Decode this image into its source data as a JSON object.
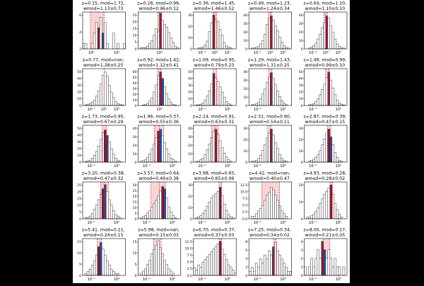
{
  "chart_data": [
    {
      "type": "histogram",
      "title_line1": "z=0.15, mod=1.72,",
      "title_line2": "wmod=1.13±0.73",
      "xscale": "log",
      "xticks": [
        "10⁰",
        "10¹"
      ],
      "yticks": [
        "2",
        "4",
        "6"
      ],
      "ymax": 7,
      "values": [
        1,
        1,
        0,
        0,
        1,
        3,
        5,
        4,
        6,
        3,
        5,
        1,
        0,
        0,
        3,
        0,
        1,
        0,
        0,
        1
      ],
      "highlight_bar": 7,
      "blue_bar": 9,
      "red_line_fracs": [
        0.18,
        0.5,
        0.5
      ]
    },
    {
      "type": "histogram",
      "title_line1": "z=0.26, mod=0.96,",
      "title_line2": "wmod=0.96±0.12",
      "xscale": "log",
      "xticks": [
        "10⁰"
      ],
      "yticks": [
        "0",
        "5",
        "10",
        "15",
        "20",
        "25"
      ],
      "ymax": 27,
      "values": [
        0,
        1,
        1,
        1,
        2,
        4,
        6,
        10,
        15,
        13,
        26,
        21,
        18,
        16,
        12,
        8,
        5,
        2,
        1,
        0
      ],
      "highlight_bar": 10,
      "blue_bar": -1,
      "red_line_fracs": [
        0.46,
        0.5,
        0.54
      ]
    },
    {
      "type": "histogram",
      "title_line1": "z=0.36, mod=1.45,",
      "title_line2": "wmod=1.46±0.52",
      "xscale": "log",
      "xticks": [
        "10⁻¹",
        "10⁰",
        "10¹"
      ],
      "yticks": [
        "0",
        "10",
        "20",
        "30"
      ],
      "ymax": 38,
      "values": [
        0,
        0,
        1,
        1,
        2,
        4,
        8,
        18,
        27,
        35,
        30,
        28,
        20,
        14,
        6,
        3,
        2,
        1,
        0,
        0
      ],
      "highlight_bar": 9,
      "blue_bar": -1,
      "red_line_fracs": [
        0.46,
        0.5,
        0.54
      ]
    },
    {
      "type": "histogram",
      "title_line1": "z=0.49, mod=1.23,",
      "title_line2": "wmod=1.24±0.34",
      "xscale": "log",
      "xticks": [
        "10⁻¹",
        "10⁰",
        "10¹"
      ],
      "yticks": [
        "0",
        "10",
        "20",
        "30",
        "40"
      ],
      "ymax": 45,
      "values": [
        0,
        1,
        1,
        2,
        3,
        6,
        10,
        18,
        30,
        38,
        40,
        35,
        28,
        22,
        14,
        8,
        4,
        2,
        1,
        0
      ],
      "highlight_bar": 10,
      "blue_bar": -1,
      "red_line_fracs": [
        0.46,
        0.5,
        0.54
      ]
    },
    {
      "type": "histogram",
      "title_line1": "z=0.64, mod=1.10,",
      "title_line2": "wmod=1.10±0.10",
      "xscale": "log",
      "xticks": [
        "10⁻¹",
        "10⁰",
        "10¹"
      ],
      "yticks": [
        "0",
        "10",
        "20",
        "30",
        "40"
      ],
      "ymax": 45,
      "values": [
        0,
        0,
        1,
        2,
        4,
        7,
        12,
        18,
        26,
        32,
        40,
        38,
        28,
        20,
        12,
        6,
        3,
        1,
        1,
        0
      ],
      "highlight_bar": 10,
      "blue_bar": -1,
      "red_line_fracs": [
        0.46,
        0.5,
        0.54
      ]
    },
    {
      "type": "histogram",
      "title_line1": "z=0.77, mod=nan,",
      "title_line2": "wmod=1.28±0.25",
      "xscale": "log",
      "xticks": [
        "10⁻¹",
        "10⁰",
        "10¹"
      ],
      "yticks": [
        "0",
        "10",
        "20",
        "30",
        "40",
        "50"
      ],
      "ymax": 55,
      "values": [
        0,
        1,
        2,
        3,
        5,
        8,
        14,
        22,
        32,
        45,
        50,
        44,
        30,
        20,
        12,
        6,
        3,
        2,
        1,
        0
      ],
      "highlight_bar": -1,
      "blue_bar": -1,
      "red_line_fracs": [
        0.5
      ]
    },
    {
      "type": "histogram",
      "title_line1": "z=0.92, mod=1.42,",
      "title_line2": "wmod=1.12±0.41",
      "xscale": "log",
      "xticks": [
        "10⁰"
      ],
      "yticks": [
        "0",
        "10",
        "20",
        "30",
        "40",
        "50",
        "60"
      ],
      "ymax": 68,
      "values": [
        0,
        0,
        1,
        2,
        4,
        8,
        14,
        25,
        38,
        55,
        62,
        50,
        35,
        22,
        12,
        6,
        2,
        1,
        0,
        0
      ],
      "highlight_bar": 10,
      "blue_bar": 11,
      "red_line_fracs": [
        0.46,
        0.54
      ]
    },
    {
      "type": "histogram",
      "title_line1": "z=1.09, mod=0.95,",
      "title_line2": "wmod=0.79±0.23",
      "xscale": "log",
      "xticks": [
        "10⁻¹",
        "10⁰"
      ],
      "yticks": [
        "0",
        "10",
        "20",
        "30",
        "40",
        "50"
      ],
      "ymax": 55,
      "values": [
        0,
        1,
        1,
        2,
        4,
        8,
        14,
        22,
        32,
        48,
        42,
        36,
        28,
        20,
        12,
        6,
        3,
        1,
        0,
        0
      ],
      "highlight_bar": 9,
      "blue_bar": -1,
      "red_line_fracs": [
        0.46,
        0.54
      ]
    },
    {
      "type": "histogram",
      "title_line1": "z=1.29, mod=1.43,",
      "title_line2": "wmod=1.31±0.25",
      "xscale": "log",
      "xticks": [
        "10⁻¹",
        "10⁰"
      ],
      "yticks": [
        "0",
        "10",
        "20",
        "30",
        "40"
      ],
      "ymax": 45,
      "values": [
        0,
        1,
        1,
        2,
        4,
        8,
        14,
        20,
        28,
        35,
        40,
        33,
        26,
        18,
        11,
        6,
        3,
        1,
        0,
        0
      ],
      "highlight_bar": 10,
      "blue_bar": -1,
      "red_line_fracs": [
        0.46,
        0.54
      ]
    },
    {
      "type": "histogram",
      "title_line1": "z=1.49, mod=0.99,",
      "title_line2": "wmod=0.99±0.10",
      "xscale": "log",
      "xticks": [
        "10⁻¹",
        "10⁰"
      ],
      "yticks": [
        "0",
        "10",
        "20",
        "30",
        "40",
        "50"
      ],
      "ymax": 55,
      "values": [
        0,
        0,
        1,
        2,
        3,
        6,
        10,
        16,
        24,
        32,
        42,
        50,
        38,
        26,
        16,
        8,
        4,
        2,
        1,
        0
      ],
      "highlight_bar": 11,
      "blue_bar": -1,
      "red_line_fracs": [
        0.5,
        0.58
      ]
    },
    {
      "type": "histogram",
      "title_line1": "z=1.73, mod=0.95,",
      "title_line2": "wmod=0.67±0.29",
      "xscale": "log",
      "xticks": [
        "10⁻¹",
        "10⁰"
      ],
      "yticks": [
        "0",
        "10",
        "20",
        "30",
        "40",
        "50"
      ],
      "ymax": 55,
      "values": [
        0,
        1,
        2,
        3,
        6,
        10,
        16,
        24,
        34,
        44,
        48,
        40,
        30,
        20,
        12,
        6,
        3,
        1,
        0,
        0
      ],
      "highlight_bar": 10,
      "blue_bar": 11,
      "red_line_fracs": [
        0.46,
        0.56
      ]
    },
    {
      "type": "histogram",
      "title_line1": "z=1.96, mod=0.37,",
      "title_line2": "wmod=0.55±0.36",
      "xscale": "log",
      "xticks": [
        "10⁻¹",
        "10⁰"
      ],
      "yticks": [
        "0",
        "10",
        "20",
        "30",
        "40"
      ],
      "ymax": 45,
      "values": [
        0,
        1,
        2,
        3,
        6,
        10,
        16,
        22,
        30,
        38,
        40,
        32,
        24,
        16,
        10,
        5,
        3,
        1,
        0,
        0
      ],
      "highlight_bar": 9,
      "blue_bar": 10,
      "red_line_fracs": [
        0.38,
        0.5,
        0.6
      ]
    },
    {
      "type": "histogram",
      "title_line1": "z=2.24, mod=0.91,",
      "title_line2": "wmod=0.63±0.31",
      "xscale": "log",
      "xticks": [
        "10⁻¹",
        "10⁰"
      ],
      "yticks": [
        "0",
        "10",
        "20",
        "30",
        "40"
      ],
      "ymax": 45,
      "values": [
        0,
        1,
        1,
        3,
        5,
        9,
        15,
        22,
        30,
        38,
        40,
        34,
        26,
        18,
        11,
        6,
        3,
        1,
        0,
        0
      ],
      "highlight_bar": 10,
      "blue_bar": -1,
      "red_line_fracs": [
        0.42,
        0.5,
        0.58
      ]
    },
    {
      "type": "histogram",
      "title_line1": "z=2.51, mod=0.60,",
      "title_line2": "wmod=0.54±0.11",
      "xscale": "log",
      "xticks": [
        "10⁻¹",
        "10⁰"
      ],
      "yticks": [
        "0",
        "10",
        "20",
        "30"
      ],
      "ymax": 38,
      "values": [
        0,
        1,
        1,
        2,
        4,
        7,
        12,
        18,
        25,
        30,
        34,
        28,
        20,
        14,
        8,
        4,
        2,
        1,
        0,
        0
      ],
      "highlight_bar": 10,
      "blue_bar": -1,
      "red_line_fracs": [
        0.44,
        0.52
      ]
    },
    {
      "type": "histogram",
      "title_line1": "z=2.87, mod=0.39,",
      "title_line2": "wmod=0.47±0.15",
      "xscale": "log",
      "xticks": [
        "10⁻¹",
        "10⁰"
      ],
      "yticks": [
        "0",
        "10",
        "20",
        "30"
      ],
      "ymax": 38,
      "values": [
        0,
        0,
        1,
        2,
        3,
        5,
        8,
        12,
        18,
        24,
        30,
        34,
        26,
        18,
        10,
        5,
        2,
        1,
        0,
        0
      ],
      "highlight_bar": 11,
      "blue_bar": 12,
      "red_line_fracs": [
        0.54,
        0.62
      ]
    },
    {
      "type": "histogram",
      "title_line1": "z=3.20, mod=0.38,",
      "title_line2": "wmod=0.47±0.32",
      "xscale": "log",
      "xticks": [
        "10⁻¹",
        "10⁰"
      ],
      "yticks": [
        "0",
        "5",
        "10",
        "15",
        "20",
        "25"
      ],
      "ymax": 27,
      "values": [
        0,
        1,
        1,
        2,
        4,
        7,
        10,
        14,
        18,
        22,
        25,
        20,
        14,
        10,
        6,
        3,
        2,
        1,
        0,
        0
      ],
      "highlight_bar": 9,
      "blue_bar": 10,
      "red_line_fracs": [
        0.42,
        0.5,
        0.6
      ]
    },
    {
      "type": "histogram",
      "title_line1": "z=3.57, mod=0.64,",
      "title_line2": "wmod=0.49±0.38",
      "xscale": "log",
      "xticks": [
        "10⁻¹",
        "10⁰"
      ],
      "yticks": [
        "0",
        "5",
        "10",
        "15",
        "20",
        "25",
        "30"
      ],
      "ymax": 32,
      "values": [
        0,
        1,
        2,
        3,
        5,
        7,
        10,
        13,
        16,
        20,
        24,
        28,
        26,
        18,
        10,
        6,
        3,
        1,
        0,
        0
      ],
      "highlight_bar": 11,
      "blue_bar": 12,
      "red_line_fracs": [
        0.3,
        0.5,
        0.64
      ]
    },
    {
      "type": "histogram",
      "title_line1": "z=3.98, mod=0.65,",
      "title_line2": "wmod=0.65±0.06",
      "xscale": "log",
      "xticks": [
        "10⁻¹",
        "10⁰"
      ],
      "yticks": [
        "0",
        "10",
        "20",
        "30"
      ],
      "ymax": 35,
      "values": [
        0,
        1,
        2,
        3,
        5,
        8,
        12,
        16,
        20,
        22,
        24,
        26,
        30,
        22,
        14,
        8,
        4,
        2,
        1,
        0
      ],
      "highlight_bar": 12,
      "blue_bar": -1,
      "red_line_fracs": [
        0.6,
        0.66
      ]
    },
    {
      "type": "histogram",
      "title_line1": "z=4.42, mod=nan,",
      "title_line2": "wmod=0.40±0.47",
      "xscale": "log",
      "xticks": [
        "10⁻¹",
        "10⁰"
      ],
      "yticks": [
        "0.0",
        "2.5",
        "5.0",
        "7.5",
        "10.0",
        "12.5"
      ],
      "ymax": 14,
      "values": [
        0,
        1,
        1,
        2,
        3,
        4,
        5,
        7,
        9,
        10,
        12,
        11,
        9,
        7,
        5,
        3,
        2,
        1,
        0,
        0
      ],
      "highlight_bar": -1,
      "blue_bar": -1,
      "red_line_fracs": [
        0.3,
        0.72
      ]
    },
    {
      "type": "histogram",
      "title_line1": "z=4.93, mod=0.28,",
      "title_line2": "wmod=0.28±0.02",
      "xscale": "log",
      "xticks": [
        "10⁻¹",
        "10⁰"
      ],
      "yticks": [
        "0",
        "10",
        "20"
      ],
      "ymax": 24,
      "values": [
        0,
        1,
        1,
        2,
        3,
        5,
        7,
        10,
        13,
        16,
        18,
        20,
        22,
        16,
        10,
        6,
        3,
        1,
        0,
        0
      ],
      "highlight_bar": 12,
      "blue_bar": -1,
      "red_line_fracs": [
        0.6,
        0.66
      ]
    },
    {
      "type": "histogram",
      "title_line1": "z=5.41, mod=0.21,",
      "title_line2": "wmod=0.24±0.15",
      "xscale": "log",
      "xticks": [
        "10⁻¹",
        "10⁰"
      ],
      "yticks": [
        "0",
        "5",
        "10",
        "15"
      ],
      "ymax": 18,
      "values": [
        0,
        1,
        2,
        3,
        5,
        7,
        10,
        14,
        16,
        13,
        10,
        7,
        5,
        3,
        2,
        1,
        1,
        0,
        0,
        0
      ],
      "highlight_bar": 7,
      "blue_bar": 8,
      "red_line_fracs": [
        0.34,
        0.44
      ]
    },
    {
      "type": "histogram",
      "title_line1": "z=5.98, mod=nan,",
      "title_line2": "wmod=0.15±0.03",
      "xscale": "log",
      "xticks": [
        "10⁻¹",
        "10⁰"
      ],
      "yticks": [
        "0",
        "5",
        "10",
        "15"
      ],
      "ymax": 17,
      "values": [
        0,
        1,
        2,
        3,
        5,
        7,
        10,
        12,
        14,
        16,
        13,
        10,
        7,
        5,
        3,
        2,
        1,
        0,
        0,
        0
      ],
      "highlight_bar": -1,
      "blue_bar": -1,
      "red_line_fracs": [
        0.36,
        0.54
      ]
    },
    {
      "type": "histogram",
      "title_line1": "z=6.70, mod=0.37,",
      "title_line2": "wmod=0.37±0.03",
      "xscale": "log",
      "xticks": [
        "10⁻¹",
        "10⁰"
      ],
      "yticks": [
        "0.0",
        "2.5",
        "5.0",
        "7.5",
        "10.0",
        "12.5"
      ],
      "ymax": 14,
      "values": [
        3,
        2,
        4,
        3,
        5,
        6,
        7,
        8,
        9,
        10,
        11,
        12,
        13,
        10,
        8,
        6,
        4,
        3,
        2,
        1
      ],
      "highlight_bar": 12,
      "blue_bar": -1,
      "red_line_fracs": [
        0.6,
        0.66
      ]
    },
    {
      "type": "histogram",
      "title_line1": "z=7.25, mod=0.34,",
      "title_line2": "wmod=0.34±0.02",
      "xscale": "log",
      "xticks": [
        "10⁻¹",
        "10⁰"
      ],
      "yticks": [
        "0",
        "2",
        "4",
        "6",
        "8"
      ],
      "ymax": 9,
      "values": [
        1,
        2,
        1,
        3,
        2,
        4,
        3,
        5,
        4,
        6,
        5,
        7,
        8,
        6,
        5,
        4,
        3,
        2,
        1,
        1
      ],
      "highlight_bar": 11,
      "blue_bar": -1,
      "red_line_fracs": [
        0.58,
        0.64
      ]
    },
    {
      "type": "histogram",
      "title_line1": "z=8.00, mod=0.17,",
      "title_line2": "wmod=0.21±0.05",
      "xscale": "log",
      "xticks": [
        "10⁻¹",
        "10⁰"
      ],
      "yticks": [
        "0",
        "1",
        "2",
        "3",
        "4"
      ],
      "ymax": 4.3,
      "values": [
        1,
        0,
        1,
        2,
        1,
        2,
        3,
        2,
        4,
        3,
        2,
        3,
        2,
        1,
        2,
        1,
        1,
        0,
        1,
        0
      ],
      "highlight_bar": 8,
      "blue_bar": 9,
      "red_line_fracs": [
        0.44,
        0.6
      ]
    }
  ],
  "colors": {
    "bar_fill": "#ffffff",
    "bar_edge": "#222222",
    "highlight_fill": "#8b1a3a",
    "blue_fill": "#1f4e9c",
    "red_span": "#f08080",
    "red_line": "#d62728"
  }
}
